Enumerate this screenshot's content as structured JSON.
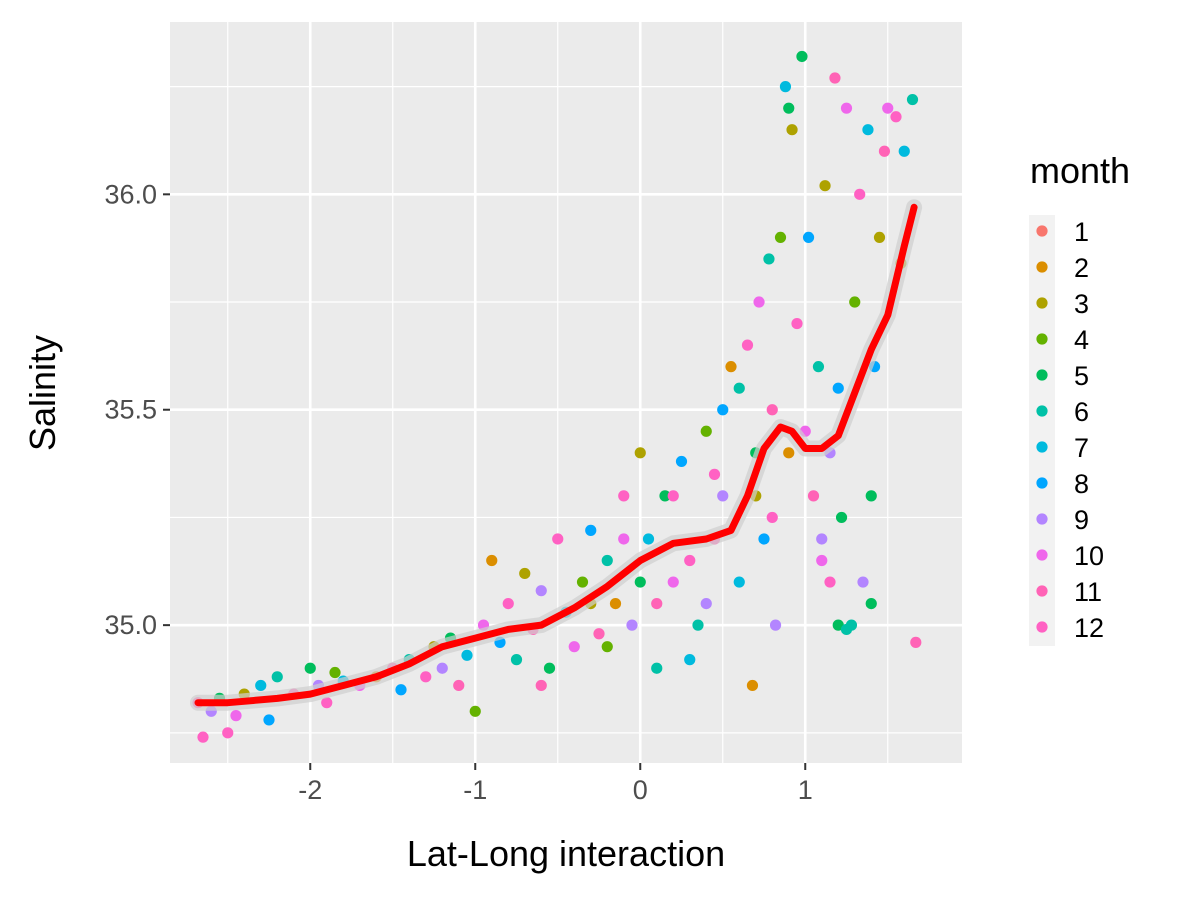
{
  "chart_data": {
    "type": "scatter",
    "title": "",
    "xlabel": "Lat-Long interaction",
    "ylabel": "Salinity",
    "xlim": [
      -2.85,
      1.95
    ],
    "ylim": [
      34.68,
      36.4
    ],
    "x_ticks": [
      -2,
      -1,
      0,
      1
    ],
    "x_tick_labels": [
      "-2",
      "-1",
      "0",
      "1"
    ],
    "y_ticks": [
      35.0,
      35.5,
      36.0
    ],
    "y_tick_labels": [
      "35.0",
      "35.5",
      "36.0"
    ],
    "grid": true,
    "legend": {
      "title": "month",
      "position": "right",
      "entries": [
        "1",
        "2",
        "3",
        "4",
        "5",
        "6",
        "7",
        "8",
        "9",
        "10",
        "11",
        "12"
      ],
      "colors": [
        "#F8766D",
        "#DB8E00",
        "#AEA200",
        "#64B200",
        "#00BD5C",
        "#00C1A7",
        "#00BADE",
        "#00A6FF",
        "#B385FF",
        "#EF67EB",
        "#FF63B6",
        "#FF61C3"
      ]
    },
    "series_note": "points colored by month",
    "points": [
      [
        -2.68,
        34.82,
        11
      ],
      [
        -2.65,
        34.74,
        12
      ],
      [
        -2.6,
        34.8,
        9
      ],
      [
        -2.55,
        34.83,
        5
      ],
      [
        -2.5,
        34.75,
        12
      ],
      [
        -2.45,
        34.79,
        10
      ],
      [
        -2.4,
        34.84,
        3
      ],
      [
        -2.3,
        34.86,
        7
      ],
      [
        -2.25,
        34.78,
        8
      ],
      [
        -2.2,
        34.88,
        6
      ],
      [
        -2.1,
        34.84,
        11
      ],
      [
        -2.0,
        34.9,
        5
      ],
      [
        -1.95,
        34.86,
        9
      ],
      [
        -1.9,
        34.82,
        12
      ],
      [
        -1.85,
        34.89,
        4
      ],
      [
        -1.8,
        34.87,
        7
      ],
      [
        -1.7,
        34.86,
        10
      ],
      [
        -1.6,
        34.88,
        2
      ],
      [
        -1.5,
        34.9,
        11
      ],
      [
        -1.45,
        34.85,
        8
      ],
      [
        -1.4,
        34.92,
        6
      ],
      [
        -1.3,
        34.88,
        12
      ],
      [
        -1.25,
        34.95,
        3
      ],
      [
        -1.2,
        34.9,
        9
      ],
      [
        -1.15,
        34.97,
        5
      ],
      [
        -1.1,
        34.86,
        11
      ],
      [
        -1.05,
        34.93,
        7
      ],
      [
        -1.0,
        34.8,
        4
      ],
      [
        -0.95,
        35.0,
        10
      ],
      [
        -0.9,
        35.15,
        2
      ],
      [
        -0.85,
        34.96,
        8
      ],
      [
        -0.8,
        35.05,
        12
      ],
      [
        -0.75,
        34.92,
        6
      ],
      [
        -0.7,
        35.12,
        3
      ],
      [
        -0.65,
        34.99,
        11
      ],
      [
        -0.6,
        35.08,
        9
      ],
      [
        -0.55,
        34.9,
        5
      ],
      [
        -0.5,
        35.2,
        12
      ],
      [
        -0.45,
        35.03,
        7
      ],
      [
        -0.4,
        34.95,
        10
      ],
      [
        -0.35,
        35.1,
        4
      ],
      [
        -0.3,
        35.22,
        8
      ],
      [
        -0.25,
        34.98,
        11
      ],
      [
        -0.2,
        35.15,
        6
      ],
      [
        -0.15,
        35.05,
        2
      ],
      [
        -0.1,
        35.3,
        12
      ],
      [
        -0.05,
        35.0,
        9
      ],
      [
        0.0,
        35.4,
        3
      ],
      [
        0.05,
        35.2,
        7
      ],
      [
        0.1,
        35.05,
        11
      ],
      [
        0.15,
        35.3,
        5
      ],
      [
        0.2,
        35.1,
        10
      ],
      [
        0.25,
        35.38,
        8
      ],
      [
        0.3,
        35.15,
        12
      ],
      [
        0.35,
        35.0,
        6
      ],
      [
        0.4,
        35.45,
        4
      ],
      [
        0.45,
        35.2,
        11
      ],
      [
        0.5,
        35.3,
        9
      ],
      [
        0.55,
        35.6,
        2
      ],
      [
        0.6,
        35.1,
        7
      ],
      [
        0.65,
        35.65,
        12
      ],
      [
        0.68,
        34.86,
        2
      ],
      [
        0.7,
        35.4,
        5
      ],
      [
        0.72,
        35.75,
        10
      ],
      [
        0.75,
        35.2,
        8
      ],
      [
        0.78,
        35.85,
        6
      ],
      [
        0.8,
        35.5,
        11
      ],
      [
        0.82,
        35.0,
        9
      ],
      [
        0.85,
        35.9,
        4
      ],
      [
        0.88,
        36.25,
        7
      ],
      [
        0.9,
        36.2,
        5
      ],
      [
        0.92,
        36.15,
        3
      ],
      [
        0.95,
        35.7,
        12
      ],
      [
        0.98,
        36.32,
        5
      ],
      [
        1.0,
        35.45,
        10
      ],
      [
        1.02,
        35.9,
        8
      ],
      [
        1.05,
        35.3,
        11
      ],
      [
        1.08,
        35.6,
        6
      ],
      [
        1.1,
        35.2,
        9
      ],
      [
        1.12,
        36.02,
        3
      ],
      [
        1.15,
        35.1,
        12
      ],
      [
        1.18,
        36.27,
        11
      ],
      [
        1.2,
        35.55,
        8
      ],
      [
        1.22,
        35.25,
        5
      ],
      [
        1.25,
        36.2,
        10
      ],
      [
        1.28,
        35.0,
        6
      ],
      [
        1.3,
        35.75,
        4
      ],
      [
        1.33,
        36.0,
        12
      ],
      [
        1.35,
        35.1,
        9
      ],
      [
        1.38,
        36.15,
        7
      ],
      [
        1.4,
        35.3,
        5
      ],
      [
        1.42,
        35.6,
        8
      ],
      [
        1.45,
        35.9,
        3
      ],
      [
        1.48,
        36.1,
        11
      ],
      [
        1.5,
        36.2,
        10
      ],
      [
        1.55,
        36.18,
        12
      ],
      [
        1.58,
        35.84,
        3
      ],
      [
        1.6,
        36.1,
        7
      ],
      [
        1.65,
        36.22,
        6
      ],
      [
        1.67,
        34.96,
        11
      ],
      [
        -0.2,
        34.95,
        4
      ],
      [
        0.1,
        34.9,
        6
      ],
      [
        0.3,
        34.92,
        7
      ],
      [
        -0.6,
        34.86,
        11
      ],
      [
        0.5,
        35.5,
        8
      ],
      [
        0.6,
        35.55,
        6
      ],
      [
        0.7,
        35.3,
        3
      ],
      [
        0.8,
        35.25,
        12
      ],
      [
        0.9,
        35.4,
        2
      ],
      [
        0.2,
        35.3,
        12
      ],
      [
        -0.1,
        35.2,
        10
      ],
      [
        0.0,
        35.1,
        5
      ],
      [
        0.4,
        35.05,
        9
      ],
      [
        0.45,
        35.35,
        12
      ],
      [
        -0.3,
        35.05,
        3
      ],
      [
        1.2,
        35.0,
        5
      ],
      [
        1.25,
        34.99,
        6
      ],
      [
        1.4,
        35.05,
        5
      ],
      [
        1.1,
        35.15,
        10
      ],
      [
        1.15,
        35.4,
        9
      ]
    ],
    "smooth": {
      "color": "#FF0000",
      "x": [
        -2.68,
        -2.5,
        -2.2,
        -2.0,
        -1.8,
        -1.6,
        -1.4,
        -1.2,
        -1.0,
        -0.8,
        -0.6,
        -0.4,
        -0.2,
        0.0,
        0.2,
        0.4,
        0.55,
        0.65,
        0.75,
        0.85,
        0.92,
        1.0,
        1.1,
        1.2,
        1.3,
        1.4,
        1.5,
        1.6,
        1.66
      ],
      "y": [
        34.82,
        34.82,
        34.83,
        34.84,
        34.86,
        34.88,
        34.91,
        34.95,
        34.97,
        34.99,
        35.0,
        35.04,
        35.09,
        35.15,
        35.19,
        35.2,
        35.22,
        35.3,
        35.41,
        35.46,
        35.45,
        35.41,
        35.41,
        35.44,
        35.54,
        35.64,
        35.72,
        35.88,
        35.97
      ]
    }
  }
}
